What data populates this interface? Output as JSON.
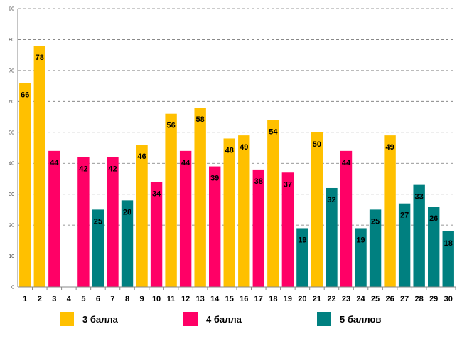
{
  "chart_data": {
    "type": "bar",
    "title": "",
    "xlabel": "",
    "ylabel": "",
    "ylim": [
      0,
      90
    ],
    "yticks": [
      0,
      10,
      20,
      30,
      40,
      50,
      60,
      70,
      80,
      90
    ],
    "grid": true,
    "categories": [
      "1",
      "2",
      "3",
      "4",
      "5",
      "6",
      "7",
      "8",
      "9",
      "10",
      "11",
      "12",
      "13",
      "14",
      "15",
      "16",
      "17",
      "18",
      "19",
      "20",
      "21",
      "22",
      "23",
      "24",
      "25",
      "26",
      "27",
      "28",
      "29",
      "30"
    ],
    "values": [
      66,
      78,
      44,
      null,
      42,
      25,
      42,
      28,
      46,
      34,
      56,
      44,
      58,
      39,
      48,
      49,
      38,
      54,
      37,
      19,
      50,
      32,
      44,
      19,
      25,
      49,
      27,
      33,
      26,
      18
    ],
    "bar_series": [
      "3 балла",
      "3 балла",
      "4 балла",
      null,
      "4 балла",
      "5 баллов",
      "4 балла",
      "5 баллов",
      "3 балла",
      "4 балла",
      "3 балла",
      "4 балла",
      "3 балла",
      "4 балла",
      "3 балла",
      "3 балла",
      "4 балла",
      "3 балла",
      "4 балла",
      "5 баллов",
      "3 балла",
      "5 баллов",
      "4 балла",
      "5 баллов",
      "5 баллов",
      "3 балла",
      "5 баллов",
      "5 баллов",
      "5 баллов",
      "5 баллов"
    ],
    "series": [
      {
        "name": "3 балла",
        "color": "#FFC000"
      },
      {
        "name": "4 балла",
        "color": "#FF0066"
      },
      {
        "name": "5 баллов",
        "color": "#008080"
      }
    ],
    "legend_position": "bottom"
  }
}
